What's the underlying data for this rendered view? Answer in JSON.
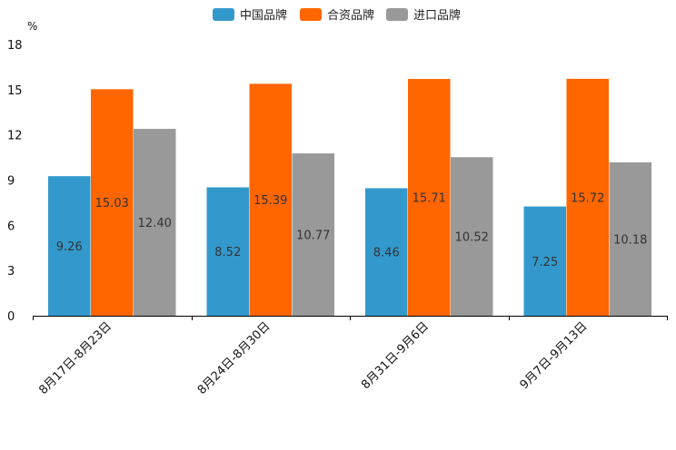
{
  "chart_data": {
    "type": "bar",
    "title": "",
    "xlabel": "",
    "ylabel": "%",
    "ylim": [
      0,
      18
    ],
    "yticks": [
      0,
      3,
      6,
      9,
      12,
      15,
      18
    ],
    "grid": false,
    "legend_position": "top-center",
    "categories": [
      "8月17日-8月23日",
      "8月24日-8月30日",
      "8月31日-9月6日",
      "9月7日-9月13日"
    ],
    "series": [
      {
        "name": "中国品牌",
        "color": "#3399cc",
        "values": [
          9.26,
          8.52,
          8.46,
          7.25
        ]
      },
      {
        "name": "合资品牌",
        "color": "#ff6600",
        "values": [
          15.03,
          15.39,
          15.71,
          15.72
        ]
      },
      {
        "name": "进口品牌",
        "color": "#999999",
        "values": [
          12.4,
          10.77,
          10.52,
          10.18
        ]
      }
    ]
  }
}
